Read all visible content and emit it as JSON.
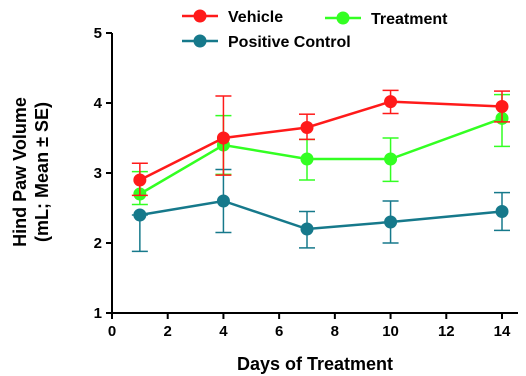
{
  "chart_data": {
    "type": "line",
    "title": "",
    "xlabel": "Days of Treatment",
    "ylabel": [
      "Hind Paw Volume",
      "(mL; Mean ± SE)"
    ],
    "xlim": [
      0,
      15
    ],
    "ylim": [
      1,
      5
    ],
    "xticks": [
      0,
      2,
      4,
      6,
      8,
      10,
      12,
      14
    ],
    "yticks": [
      1,
      2,
      3,
      4,
      5
    ],
    "x": [
      1,
      4,
      7,
      10,
      14
    ],
    "grid": false,
    "legend_position": "top",
    "series": [
      {
        "name": "Vehicle",
        "color": "#ff1a1a",
        "marker": "circle",
        "values": [
          2.9,
          3.5,
          3.65,
          4.02,
          3.95
        ],
        "err_upper": [
          3.14,
          4.1,
          3.84,
          4.18,
          4.17
        ],
        "err_lower": [
          2.68,
          2.97,
          3.48,
          3.85,
          3.73
        ]
      },
      {
        "name": "Treatment",
        "color": "#33ff22",
        "marker": "circle",
        "values": [
          2.7,
          3.4,
          3.2,
          3.2,
          3.78
        ],
        "err_upper": [
          3.02,
          3.82,
          3.48,
          3.5,
          4.12
        ],
        "err_lower": [
          2.55,
          2.98,
          2.9,
          2.88,
          3.38
        ]
      },
      {
        "name": "Positive Control",
        "color": "#16798b",
        "marker": "circle",
        "values": [
          2.4,
          2.6,
          2.2,
          2.3,
          2.45
        ],
        "err_upper": [
          2.4,
          3.05,
          2.45,
          2.6,
          2.72
        ],
        "err_lower": [
          1.88,
          2.15,
          1.93,
          2.0,
          2.18
        ]
      }
    ]
  }
}
